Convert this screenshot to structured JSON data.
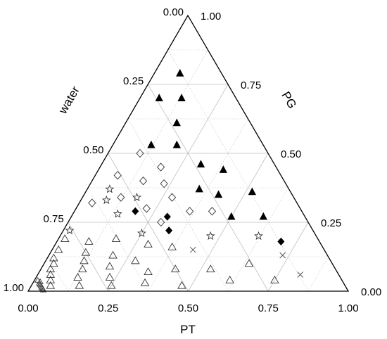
{
  "chart_data": {
    "type": "scatter",
    "subtype": "ternary",
    "title": "",
    "axes": {
      "bottom": {
        "label": "PT",
        "ticks": [
          "0.00",
          "0.25",
          "0.50",
          "0.75",
          "1.00"
        ]
      },
      "left": {
        "label": "water",
        "ticks": [
          "0.00",
          "0.25",
          "0.50",
          "0.75",
          "1.00"
        ]
      },
      "right": {
        "label": "PG",
        "ticks": [
          "1.00",
          "0.75",
          "0.50",
          "0.25",
          "0.00"
        ]
      }
    },
    "grid": true,
    "legend": "none",
    "series": [
      {
        "marker": "filled-triangle",
        "points": [
          {
            "PT": 0.08,
            "PG": 0.79
          },
          {
            "PT": 0.06,
            "PG": 0.7
          },
          {
            "PT": 0.13,
            "PG": 0.7
          },
          {
            "PT": 0.16,
            "PG": 0.61
          },
          {
            "PT": 0.12,
            "PG": 0.53
          },
          {
            "PT": 0.2,
            "PG": 0.53
          },
          {
            "PT": 0.31,
            "PG": 0.46
          },
          {
            "PT": 0.39,
            "PG": 0.44
          },
          {
            "PT": 0.35,
            "PG": 0.37
          },
          {
            "PT": 0.42,
            "PG": 0.35
          },
          {
            "PT": 0.52,
            "PG": 0.36
          },
          {
            "PT": 0.5,
            "PG": 0.27
          },
          {
            "PT": 0.6,
            "PG": 0.27
          }
        ]
      },
      {
        "marker": "filled-diamond",
        "points": [
          {
            "PT": 0.19,
            "PG": 0.29
          },
          {
            "PT": 0.3,
            "PG": 0.27
          },
          {
            "PT": 0.33,
            "PG": 0.22
          },
          {
            "PT": 0.7,
            "PG": 0.18
          }
        ]
      },
      {
        "marker": "open-diamond",
        "points": [
          {
            "PT": 0.1,
            "PG": 0.5
          },
          {
            "PT": 0.19,
            "PG": 0.45
          },
          {
            "PT": 0.07,
            "PG": 0.42
          },
          {
            "PT": 0.16,
            "PG": 0.4
          },
          {
            "PT": 0.23,
            "PG": 0.39
          },
          {
            "PT": 0.12,
            "PG": 0.34
          },
          {
            "PT": 0.28,
            "PG": 0.34
          },
          {
            "PT": 0.04,
            "PG": 0.32
          },
          {
            "PT": 0.22,
            "PG": 0.3
          },
          {
            "PT": 0.36,
            "PG": 0.29
          },
          {
            "PT": 0.29,
            "PG": 0.25
          },
          {
            "PT": 0.43,
            "PG": 0.29
          }
        ]
      },
      {
        "marker": "star",
        "points": [
          {
            "PT": 0.07,
            "PG": 0.37
          },
          {
            "PT": 0.17,
            "PG": 0.34
          },
          {
            "PT": 0.08,
            "PG": 0.33
          },
          {
            "PT": 0.14,
            "PG": 0.28
          },
          {
            "PT": 0.25,
            "PG": 0.21
          },
          {
            "PT": 0.47,
            "PG": 0.2
          },
          {
            "PT": 0.62,
            "PG": 0.2
          },
          {
            "PT": 0.02,
            "PG": 0.22
          }
        ]
      },
      {
        "marker": "cross",
        "points": [
          {
            "PT": 0.44,
            "PG": 0.15
          },
          {
            "PT": 0.73,
            "PG": 0.13
          },
          {
            "PT": 0.82,
            "PG": 0.06
          }
        ]
      },
      {
        "marker": "open-triangle",
        "points": [
          {
            "PT": 0.02,
            "PG": 0.19
          },
          {
            "PT": 0.02,
            "PG": 0.15
          },
          {
            "PT": 0.02,
            "PG": 0.12
          },
          {
            "PT": 0.03,
            "PG": 0.1
          },
          {
            "PT": 0.03,
            "PG": 0.08
          },
          {
            "PT": 0.04,
            "PG": 0.06
          },
          {
            "PT": 0.05,
            "PG": 0.04
          },
          {
            "PT": 0.06,
            "PG": 0.02
          },
          {
            "PT": 0.1,
            "PG": 0.18
          },
          {
            "PT": 0.11,
            "PG": 0.14
          },
          {
            "PT": 0.12,
            "PG": 0.11
          },
          {
            "PT": 0.13,
            "PG": 0.08
          },
          {
            "PT": 0.13,
            "PG": 0.05
          },
          {
            "PT": 0.15,
            "PG": 0.02
          },
          {
            "PT": 0.18,
            "PG": 0.19
          },
          {
            "PT": 0.2,
            "PG": 0.13
          },
          {
            "PT": 0.21,
            "PG": 0.09
          },
          {
            "PT": 0.23,
            "PG": 0.05
          },
          {
            "PT": 0.25,
            "PG": 0.02
          },
          {
            "PT": 0.29,
            "PG": 0.17
          },
          {
            "PT": 0.28,
            "PG": 0.11
          },
          {
            "PT": 0.34,
            "PG": 0.07
          },
          {
            "PT": 0.35,
            "PG": 0.03
          },
          {
            "PT": 0.37,
            "PG": 0.16
          },
          {
            "PT": 0.42,
            "PG": 0.08
          },
          {
            "PT": 0.47,
            "PG": 0.02
          },
          {
            "PT": 0.53,
            "PG": 0.08
          },
          {
            "PT": 0.61,
            "PG": 0.04
          },
          {
            "PT": 0.64,
            "PG": 0.1
          },
          {
            "PT": 0.75,
            "PG": 0.04
          }
        ]
      },
      {
        "marker": "small-open-triangle",
        "points": [
          {
            "PT": 0.01,
            "PG": 0.04
          },
          {
            "PT": 0.02,
            "PG": 0.035
          },
          {
            "PT": 0.02,
            "PG": 0.03
          },
          {
            "PT": 0.025,
            "PG": 0.025
          },
          {
            "PT": 0.03,
            "PG": 0.02
          },
          {
            "PT": 0.035,
            "PG": 0.015
          },
          {
            "PT": 0.04,
            "PG": 0.01
          },
          {
            "PT": 0.045,
            "PG": 0.005
          }
        ]
      }
    ]
  }
}
